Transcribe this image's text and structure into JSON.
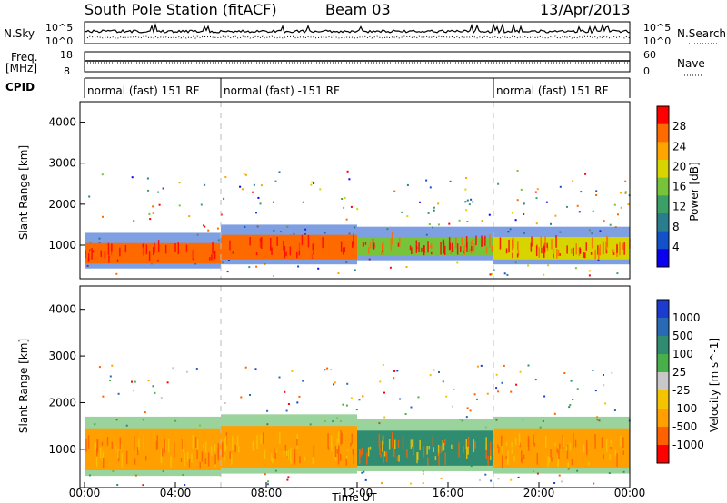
{
  "header": {
    "station": "South Pole Station (fitACF)",
    "beam": "Beam 03",
    "date": "13/Apr/2013"
  },
  "aux_panels": {
    "nsky": {
      "label": "N.Sky",
      "ticks": [
        "10^5",
        "10^0"
      ],
      "right_label": "N.Search",
      "right_ticks": [
        "10^5",
        "10^0"
      ]
    },
    "freq": {
      "label_line1": "Freq.",
      "label_line2": "[MHz]",
      "ticks": [
        "18",
        "8"
      ],
      "right_label": "Nave",
      "right_ticks": [
        "60",
        "0"
      ]
    },
    "cpid": {
      "label": "CPID",
      "segments": [
        {
          "start_hour": 0,
          "end_hour": 6,
          "text": "normal (fast) 151 RF"
        },
        {
          "start_hour": 6,
          "end_hour": 18,
          "text": "normal (fast) -151 RF"
        },
        {
          "start_hour": 18,
          "end_hour": 24,
          "text": "normal (fast) 151 RF"
        }
      ]
    }
  },
  "chart_data": [
    {
      "type": "heatmap",
      "name": "Power",
      "ylabel": "Slant Range [km]",
      "ylim": [
        180,
        4500
      ],
      "yticks": [
        1000,
        2000,
        3000,
        4000
      ],
      "xlim": [
        0,
        24
      ],
      "colorbar": {
        "label": "Power [dB]",
        "range": [
          0,
          32
        ],
        "ticks": [
          4,
          8,
          12,
          16,
          20,
          24,
          28
        ],
        "colors": [
          "#0a00f0",
          "#1450c8",
          "#2a7d8c",
          "#3aa066",
          "#77c43a",
          "#d8d400",
          "#ffa500",
          "#ff6a00",
          "#ff0000"
        ]
      },
      "bands": [
        {
          "hour_start": 0.0,
          "hour_end": 6.0,
          "range_low": 550,
          "range_high": 1050,
          "power_db": 28
        },
        {
          "hour_start": 6.0,
          "hour_end": 12.0,
          "range_low": 650,
          "range_high": 1250,
          "power_db": 28
        },
        {
          "hour_start": 12.0,
          "hour_end": 18.0,
          "range_low": 750,
          "range_high": 1200,
          "power_db": 14
        },
        {
          "hour_start": 18.0,
          "hour_end": 24.0,
          "range_low": 650,
          "range_high": 1200,
          "power_db": 20
        }
      ]
    },
    {
      "type": "heatmap",
      "name": "Velocity",
      "ylabel": "Slant Range [km]",
      "xlabel": "Time UT",
      "ylim": [
        180,
        4500
      ],
      "yticks": [
        1000,
        2000,
        3000,
        4000
      ],
      "xlim": [
        0,
        24
      ],
      "xticks": [
        "00:00",
        "04:00",
        "08:00",
        "12:00",
        "16:00",
        "20:00",
        "00:00"
      ],
      "colorbar": {
        "label": "Velocity [m s^-1]",
        "ticks": [
          "1000",
          "500",
          "100",
          "25",
          "-25",
          "-100",
          "-500",
          "-1000"
        ],
        "colors": [
          "#1c3ccf",
          "#2a6ab4",
          "#2f8c70",
          "#47b04a",
          "#c8c8c8",
          "#f5c400",
          "#ffa000",
          "#ff6000",
          "#ff0000"
        ]
      },
      "bands": [
        {
          "hour_start": 0.0,
          "hour_end": 6.0,
          "range_low": 550,
          "range_high": 1450,
          "velocity": -100
        },
        {
          "hour_start": 6.0,
          "hour_end": 12.0,
          "range_low": 600,
          "range_high": 1500,
          "velocity": -100
        },
        {
          "hour_start": 12.0,
          "hour_end": 18.0,
          "range_low": 650,
          "range_high": 1400,
          "velocity": 100
        },
        {
          "hour_start": 18.0,
          "hour_end": 24.0,
          "range_low": 600,
          "range_high": 1450,
          "velocity": -100
        }
      ]
    }
  ]
}
